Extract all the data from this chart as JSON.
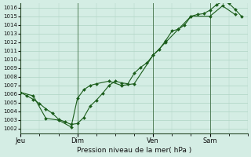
{
  "title": "Pression niveau de la mer( hPa )",
  "ylabel_ticks": [
    1002,
    1003,
    1004,
    1005,
    1006,
    1007,
    1008,
    1009,
    1010,
    1011,
    1012,
    1013,
    1014,
    1015,
    1016
  ],
  "ylim": [
    1001.5,
    1016.5
  ],
  "background_color": "#d4ede4",
  "grid_color": "#aed4c4",
  "line_color": "#1a5c1a",
  "marker_color": "#1a5c1a",
  "xlim": [
    0,
    36
  ],
  "day_positions": [
    0,
    9,
    21,
    30
  ],
  "day_labels": [
    "Jeu",
    "Dim",
    "Ven",
    "Sam"
  ],
  "series1_x": [
    0,
    1,
    2,
    3,
    4,
    5,
    6,
    7,
    8,
    9,
    10,
    11,
    12,
    13,
    14,
    15,
    16,
    17,
    18,
    19,
    20,
    21,
    22,
    23,
    24,
    25,
    26,
    27,
    28,
    29,
    30,
    31,
    32,
    33,
    34,
    35
  ],
  "series1_y": [
    1006.2,
    1005.8,
    1005.4,
    1004.9,
    1004.3,
    1003.8,
    1003.1,
    1002.8,
    1002.5,
    1002.6,
    1003.3,
    1004.6,
    1005.3,
    1006.1,
    1007.0,
    1007.5,
    1007.3,
    1007.2,
    1008.4,
    1009.1,
    1009.6,
    1010.5,
    1011.2,
    1012.2,
    1013.3,
    1013.5,
    1014.0,
    1015.0,
    1015.2,
    1015.3,
    1015.7,
    1016.3,
    1016.7,
    1016.5,
    1015.8,
    1015.0
  ],
  "series2_x": [
    0,
    2,
    4,
    6,
    8,
    9,
    10,
    11,
    12,
    14,
    16,
    18,
    21,
    23,
    25,
    27,
    30,
    32,
    34
  ],
  "series2_y": [
    1006.2,
    1005.8,
    1003.2,
    1003.0,
    1002.2,
    1005.5,
    1006.5,
    1007.0,
    1007.2,
    1007.5,
    1007.0,
    1007.2,
    1010.5,
    1012.0,
    1013.5,
    1015.0,
    1015.0,
    1016.2,
    1015.2
  ]
}
